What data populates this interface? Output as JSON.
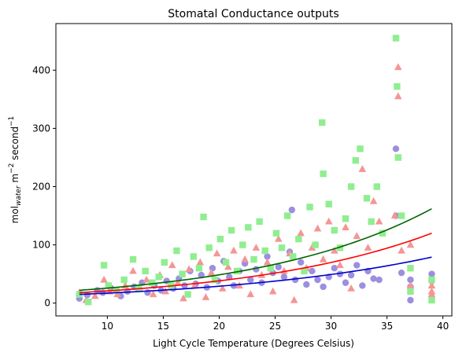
{
  "chart_data": {
    "type": "scatter",
    "title": "Stomatal Conductance outputs",
    "xlabel": "Light Cycle Temperature (Degrees Celsius)",
    "ylabel": {
      "base": "mol",
      "subscript": "water",
      "unit1": " m",
      "exp1": "−2",
      "unit2": " second",
      "exp2": "−1"
    },
    "xlim": [
      5.4,
      40.8
    ],
    "ylim": [
      -22,
      480
    ],
    "xticks": [
      10,
      15,
      20,
      25,
      30,
      35,
      40
    ],
    "yticks": [
      0,
      100,
      200,
      300,
      400
    ],
    "grid": false,
    "series": [
      {
        "marker": "circle",
        "color": "#9b8fe0",
        "points": [
          [
            7.5,
            8
          ],
          [
            8.2,
            14
          ],
          [
            9.1,
            22
          ],
          [
            9.6,
            18
          ],
          [
            10.3,
            26
          ],
          [
            11.2,
            12
          ],
          [
            11.8,
            20
          ],
          [
            12.4,
            28
          ],
          [
            13.1,
            35
          ],
          [
            13.6,
            18
          ],
          [
            14.2,
            30
          ],
          [
            14.8,
            22
          ],
          [
            15.3,
            38
          ],
          [
            15.9,
            25
          ],
          [
            16.4,
            42
          ],
          [
            16.9,
            30
          ],
          [
            17.4,
            55
          ],
          [
            17.9,
            33
          ],
          [
            18.4,
            48
          ],
          [
            18.9,
            27
          ],
          [
            19.4,
            60
          ],
          [
            19.9,
            38
          ],
          [
            20.4,
            72
          ],
          [
            20.9,
            45
          ],
          [
            21.3,
            30
          ],
          [
            21.8,
            55
          ],
          [
            22.3,
            68
          ],
          [
            22.8,
            40
          ],
          [
            23.3,
            58
          ],
          [
            23.8,
            35
          ],
          [
            24.3,
            80
          ],
          [
            24.8,
            52
          ],
          [
            25.3,
            62
          ],
          [
            25.8,
            45
          ],
          [
            26.3,
            88
          ],
          [
            26.5,
            160
          ],
          [
            26.8,
            40
          ],
          [
            27.3,
            70
          ],
          [
            27.8,
            32
          ],
          [
            28.3,
            55
          ],
          [
            28.8,
            40
          ],
          [
            29.3,
            28
          ],
          [
            29.8,
            45
          ],
          [
            30.3,
            60
          ],
          [
            30.8,
            50
          ],
          [
            31.3,
            35
          ],
          [
            31.8,
            48
          ],
          [
            32.3,
            65
          ],
          [
            32.8,
            30
          ],
          [
            33.3,
            55
          ],
          [
            33.8,
            42
          ],
          [
            34.3,
            40
          ],
          [
            35.8,
            265
          ],
          [
            35.8,
            150
          ],
          [
            36.3,
            52
          ],
          [
            37.1,
            28
          ],
          [
            37.1,
            40
          ],
          [
            37.1,
            5
          ],
          [
            39,
            50
          ],
          [
            39,
            38
          ]
        ]
      },
      {
        "marker": "triangle",
        "color": "#f59595",
        "points": [
          [
            7.5,
            18
          ],
          [
            8.1,
            5
          ],
          [
            8.9,
            12
          ],
          [
            9.7,
            40
          ],
          [
            10.2,
            20
          ],
          [
            10.9,
            15
          ],
          [
            11.6,
            30
          ],
          [
            12.3,
            55
          ],
          [
            12.9,
            25
          ],
          [
            13.5,
            40
          ],
          [
            14.1,
            15
          ],
          [
            14.7,
            48
          ],
          [
            15.2,
            20
          ],
          [
            15.8,
            65
          ],
          [
            16.3,
            35
          ],
          [
            16.8,
            8
          ],
          [
            17.3,
            58
          ],
          [
            17.8,
            30
          ],
          [
            18.3,
            70
          ],
          [
            18.8,
            10
          ],
          [
            19.3,
            52
          ],
          [
            19.8,
            85
          ],
          [
            20.3,
            25
          ],
          [
            20.8,
            62
          ],
          [
            21.3,
            90
          ],
          [
            21.8,
            30
          ],
          [
            22.3,
            75
          ],
          [
            22.8,
            15
          ],
          [
            23.3,
            95
          ],
          [
            23.8,
            48
          ],
          [
            24.3,
            70
          ],
          [
            24.8,
            20
          ],
          [
            25.3,
            110
          ],
          [
            25.8,
            55
          ],
          [
            26.3,
            85
          ],
          [
            26.7,
            5
          ],
          [
            27.3,
            120
          ],
          [
            27.8,
            60
          ],
          [
            28.3,
            95
          ],
          [
            28.8,
            128
          ],
          [
            29.3,
            75
          ],
          [
            29.8,
            140
          ],
          [
            30.3,
            90
          ],
          [
            30.8,
            65
          ],
          [
            31.3,
            130
          ],
          [
            31.8,
            25
          ],
          [
            32.3,
            115
          ],
          [
            32.8,
            230
          ],
          [
            33.3,
            95
          ],
          [
            33.8,
            175
          ],
          [
            34.3,
            140
          ],
          [
            35.7,
            150
          ],
          [
            36,
            405
          ],
          [
            36,
            355
          ],
          [
            36.3,
            90
          ],
          [
            37.1,
            30
          ],
          [
            37.1,
            100
          ],
          [
            39,
            15
          ],
          [
            39,
            30
          ],
          [
            39,
            20
          ]
        ]
      },
      {
        "marker": "square",
        "color": "#90ee90",
        "points": [
          [
            7.5,
            15
          ],
          [
            8.3,
            2
          ],
          [
            9.7,
            65
          ],
          [
            10.1,
            30
          ],
          [
            10.8,
            22
          ],
          [
            11.5,
            40
          ],
          [
            12.3,
            75
          ],
          [
            12.8,
            25
          ],
          [
            13.4,
            55
          ],
          [
            14,
            35
          ],
          [
            14.6,
            45
          ],
          [
            15.1,
            70
          ],
          [
            15.7,
            30
          ],
          [
            16.2,
            90
          ],
          [
            16.7,
            50
          ],
          [
            17.2,
            15
          ],
          [
            17.7,
            80
          ],
          [
            18.2,
            60
          ],
          [
            18.6,
            148
          ],
          [
            19.1,
            95
          ],
          [
            19.6,
            40
          ],
          [
            20.1,
            110
          ],
          [
            20.6,
            70
          ],
          [
            21.1,
            125
          ],
          [
            21.6,
            55
          ],
          [
            22.1,
            100
          ],
          [
            22.6,
            130
          ],
          [
            23.1,
            75
          ],
          [
            23.6,
            140
          ],
          [
            24.1,
            90
          ],
          [
            24.6,
            60
          ],
          [
            25.1,
            120
          ],
          [
            25.6,
            95
          ],
          [
            26.1,
            150
          ],
          [
            26.6,
            80
          ],
          [
            27.1,
            110
          ],
          [
            27.6,
            55
          ],
          [
            28.1,
            165
          ],
          [
            28.6,
            100
          ],
          [
            29.2,
            310
          ],
          [
            29.3,
            222
          ],
          [
            29.8,
            170
          ],
          [
            30.3,
            125
          ],
          [
            30.8,
            95
          ],
          [
            31.3,
            145
          ],
          [
            31.8,
            200
          ],
          [
            32.2,
            245
          ],
          [
            32.6,
            265
          ],
          [
            33.2,
            180
          ],
          [
            33.6,
            140
          ],
          [
            34.1,
            200
          ],
          [
            34.6,
            120
          ],
          [
            35.8,
            455
          ],
          [
            35.9,
            372
          ],
          [
            36,
            250
          ],
          [
            36.3,
            150
          ],
          [
            37.1,
            60
          ],
          [
            37.1,
            20
          ],
          [
            39,
            40
          ],
          [
            39,
            5
          ]
        ]
      }
    ],
    "fit_lines": [
      {
        "color": "#006400",
        "x": [
          7.5,
          39
        ],
        "y": [
          22,
          162
        ]
      },
      {
        "color": "#ff0000",
        "x": [
          7.5,
          39
        ],
        "y": [
          18,
          120
        ]
      },
      {
        "color": "#0000cc",
        "x": [
          7.5,
          39
        ],
        "y": [
          15,
          79
        ]
      }
    ]
  }
}
